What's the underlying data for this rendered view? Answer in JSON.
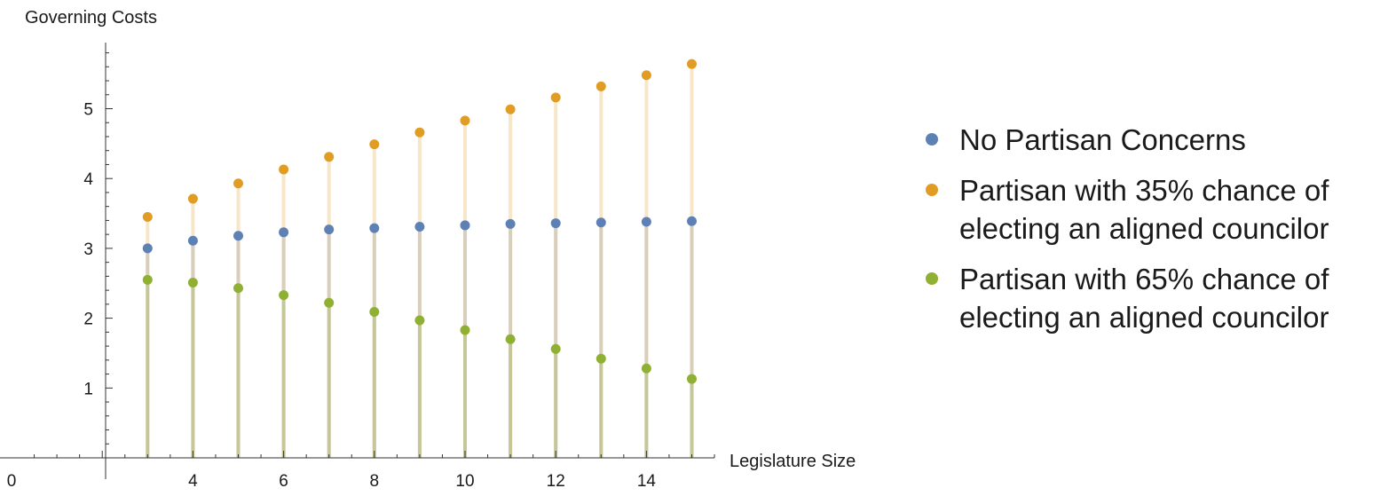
{
  "chart_data": {
    "type": "scatter",
    "title": "",
    "xlabel": "Legislature Size",
    "ylabel": "Governing Costs",
    "xlim": [
      0,
      15.5
    ],
    "ylim": [
      0,
      5.9
    ],
    "x_ticks": [
      0,
      4,
      6,
      8,
      10,
      12,
      14
    ],
    "y_ticks": [
      1,
      2,
      3,
      4,
      5
    ],
    "grid": false,
    "drop_lines": true,
    "legend": "right",
    "x": [
      3,
      4,
      5,
      6,
      7,
      8,
      9,
      10,
      11,
      12,
      13,
      14,
      15
    ],
    "series": [
      {
        "name": "No Partisan Concerns",
        "color": "#5e81b5",
        "values": [
          3.0,
          3.11,
          3.18,
          3.23,
          3.27,
          3.29,
          3.31,
          3.33,
          3.35,
          3.36,
          3.37,
          3.38,
          3.39
        ]
      },
      {
        "name": "Partisan with 35% chance of electing an aligned councilor",
        "color": "#e19c24",
        "values": [
          3.45,
          3.71,
          3.93,
          4.13,
          4.31,
          4.49,
          4.66,
          4.83,
          4.99,
          5.16,
          5.32,
          5.48,
          5.64
        ]
      },
      {
        "name": "Partisan with 65% chance of electing an aligned councilor",
        "color": "#8fb032",
        "values": [
          2.55,
          2.51,
          2.43,
          2.33,
          2.22,
          2.09,
          1.97,
          1.83,
          1.7,
          1.56,
          1.42,
          1.28,
          1.13
        ]
      }
    ]
  }
}
